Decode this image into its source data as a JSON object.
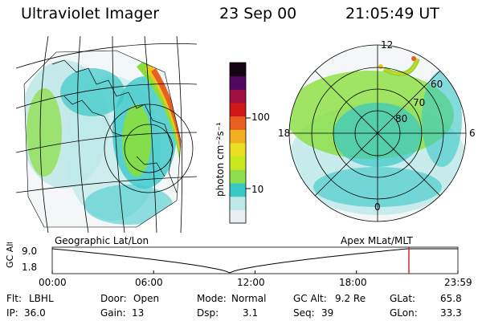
{
  "header": {
    "title": "Ultraviolet Imager",
    "date": "23 Sep 00",
    "time": "21:05:49 UT"
  },
  "colorbar": {
    "unit_label": "photon cm⁻²s⁻¹",
    "tick_labels": [
      "100",
      "10"
    ],
    "colors": [
      "#e8eef2",
      "#bde8e8",
      "#38c8c8",
      "#8ede4e",
      "#c8e820",
      "#e8e020",
      "#f0b020",
      "#e86020",
      "#d01818",
      "#a01040",
      "#500860",
      "#140414"
    ]
  },
  "geo_map": {
    "caption": "Geographic Lat/Lon",
    "colors": {
      "aurora_low": "#3ccfcf",
      "aurora_mid": "#8ade3c",
      "aurora_high": "#e8c820",
      "aurora_peak": "#e86020"
    }
  },
  "polar_map": {
    "caption": "Apex MLat/MLT",
    "mlt_labels": {
      "top": "12",
      "left": "18",
      "right": "6",
      "bottom": "0"
    },
    "lat_labels": [
      "60",
      "70",
      "80"
    ]
  },
  "altitude_plot": {
    "axis_label": "GC Alt",
    "y_ticks": [
      "9.0",
      "1.8"
    ],
    "x_ticks": [
      "00:00",
      "06:00",
      "12:00",
      "18:00",
      "23:59"
    ],
    "marker_color": "#d01818",
    "marker_time_hours": 21.1,
    "min_time_hours": 10.5
  },
  "footer": {
    "row1": [
      {
        "key": "Flt:",
        "value": "LBHL"
      },
      {
        "key": "Door:",
        "value": "Open"
      },
      {
        "key": "Mode:",
        "value": "Normal"
      },
      {
        "key": "GC Alt:",
        "value": "9.2 Re"
      },
      {
        "key": "GLat:",
        "value": "65.8"
      }
    ],
    "row2": [
      {
        "key": "IP:",
        "value": "36.0"
      },
      {
        "key": "Gain:",
        "value": "13"
      },
      {
        "key": "Dsp:",
        "value": "3.1"
      },
      {
        "key": "Seq:",
        "value": "39"
      },
      {
        "key": "GLon:",
        "value": "33.3"
      }
    ]
  }
}
